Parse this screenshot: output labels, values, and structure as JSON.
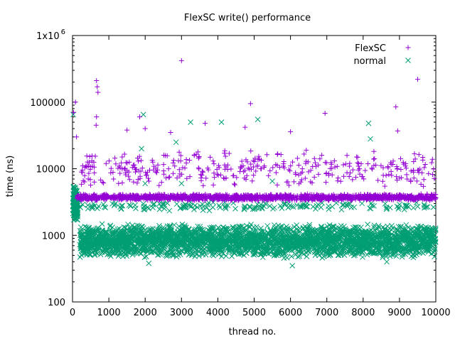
{
  "chart_data": {
    "type": "scatter",
    "title": "FlexSC write() performance",
    "xlabel": "thread no.",
    "ylabel": "time (ns)",
    "xlim": [
      0,
      10000
    ],
    "ylim": [
      100,
      1000000
    ],
    "y_scale": "log",
    "x_ticks": [
      0,
      1000,
      2000,
      3000,
      4000,
      5000,
      6000,
      7000,
      8000,
      9000,
      10000
    ],
    "y_ticks": [
      {
        "value": 100,
        "label": "100"
      },
      {
        "value": 1000,
        "label": "1000"
      },
      {
        "value": 10000,
        "label": "10000"
      },
      {
        "value": 100000,
        "label": "100000"
      },
      {
        "value": 1000000,
        "label": "1x10",
        "exponent": "6"
      }
    ],
    "grid": false,
    "legend_position": "top-right",
    "series": [
      {
        "name": "FlexSC",
        "marker": "plus",
        "color": "#9400d3",
        "bands": [
          {
            "x_range": [
              120,
              10000
            ],
            "y_range": [
              3300,
              4200
            ],
            "count": 1600
          },
          {
            "x_range": [
              150,
              10000
            ],
            "y_range": [
              5000,
              20000
            ],
            "count": 380
          }
        ],
        "points": [
          {
            "x": 30,
            "y": 70000
          },
          {
            "x": 80,
            "y": 100000
          },
          {
            "x": 110,
            "y": 30000
          },
          {
            "x": 660,
            "y": 210000
          },
          {
            "x": 680,
            "y": 170000
          },
          {
            "x": 700,
            "y": 140000
          },
          {
            "x": 660,
            "y": 60000
          },
          {
            "x": 650,
            "y": 45000
          },
          {
            "x": 1500,
            "y": 38000
          },
          {
            "x": 1850,
            "y": 60000
          },
          {
            "x": 2000,
            "y": 40000
          },
          {
            "x": 2700,
            "y": 35000
          },
          {
            "x": 3000,
            "y": 420000
          },
          {
            "x": 3650,
            "y": 48000
          },
          {
            "x": 4750,
            "y": 42000
          },
          {
            "x": 4900,
            "y": 95000
          },
          {
            "x": 6000,
            "y": 36000
          },
          {
            "x": 6950,
            "y": 68000
          },
          {
            "x": 8900,
            "y": 85000
          },
          {
            "x": 8950,
            "y": 37000
          },
          {
            "x": 9500,
            "y": 220000
          }
        ]
      },
      {
        "name": "normal",
        "marker": "cross",
        "color": "#009e73",
        "bands": [
          {
            "x_range": [
              200,
              10000
            ],
            "y_range": [
              450,
              1500
            ],
            "count": 3200
          },
          {
            "x_range": [
              10,
              150
            ],
            "y_range": [
              1500,
              6000
            ],
            "count": 160
          },
          {
            "x_range": [
              150,
              10000
            ],
            "y_range": [
              2300,
              3200
            ],
            "count": 180
          }
        ],
        "points": [
          {
            "x": 20,
            "y": 65000
          },
          {
            "x": 1950,
            "y": 65000
          },
          {
            "x": 1900,
            "y": 20000
          },
          {
            "x": 2000,
            "y": 6000
          },
          {
            "x": 2100,
            "y": 380
          },
          {
            "x": 2850,
            "y": 25000
          },
          {
            "x": 3250,
            "y": 50000
          },
          {
            "x": 4100,
            "y": 50000
          },
          {
            "x": 5100,
            "y": 55000
          },
          {
            "x": 8150,
            "y": 48000
          },
          {
            "x": 8200,
            "y": 28000
          },
          {
            "x": 6050,
            "y": 350
          },
          {
            "x": 8650,
            "y": 400
          },
          {
            "x": 5500,
            "y": 6500
          },
          {
            "x": 3000,
            "y": 6000
          }
        ]
      }
    ]
  }
}
